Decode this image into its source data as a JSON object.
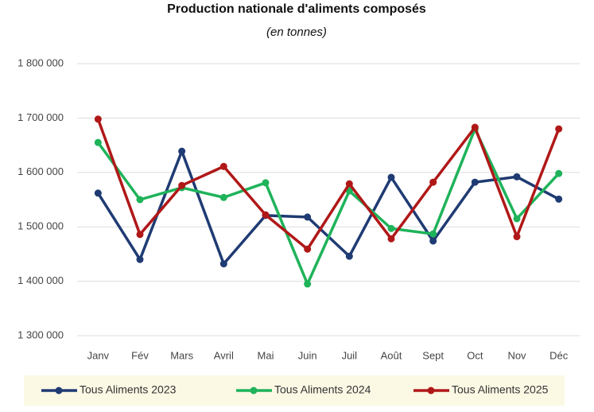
{
  "chart_data": {
    "type": "line",
    "title": "Production nationale d'aliments composés",
    "subtitle": "(en tonnes)",
    "categories": [
      "Janv",
      "Fév",
      "Mars",
      "Avril",
      "Mai",
      "Juin",
      "Juil",
      "Août",
      "Sept",
      "Oct",
      "Nov",
      "Déc"
    ],
    "series": [
      {
        "name": "Tous Aliments 2023",
        "color": "#1f3b73",
        "values": [
          1562000,
          1440000,
          1639000,
          1432000,
          1521000,
          1518000,
          1446000,
          1591000,
          1474000,
          1582000,
          1592000,
          1551000
        ]
      },
      {
        "name": "Tous Aliments 2024",
        "color": "#1fb35a",
        "values": [
          1655000,
          1550000,
          1572000,
          1554000,
          1581000,
          1395000,
          1566000,
          1497000,
          1487000,
          1680000,
          1515000,
          1598000
        ]
      },
      {
        "name": "Tous Aliments 2025",
        "color": "#b01818",
        "values": [
          1698000,
          1486000,
          1576000,
          1611000,
          1522000,
          1459000,
          1579000,
          1478000,
          1582000,
          1683000,
          1482000,
          1680000
        ]
      }
    ],
    "ylim": [
      1300000,
      1800000
    ],
    "yticks": [
      {
        "value": 1300000,
        "label": "1 300 000"
      },
      {
        "value": 1400000,
        "label": "1 400 000"
      },
      {
        "value": 1500000,
        "label": "1 500 000"
      },
      {
        "value": 1600000,
        "label": "1 600 000"
      },
      {
        "value": 1700000,
        "label": "1 700 000"
      },
      {
        "value": 1800000,
        "label": "1 800 000"
      }
    ],
    "grid": true,
    "legend": "bottom"
  }
}
